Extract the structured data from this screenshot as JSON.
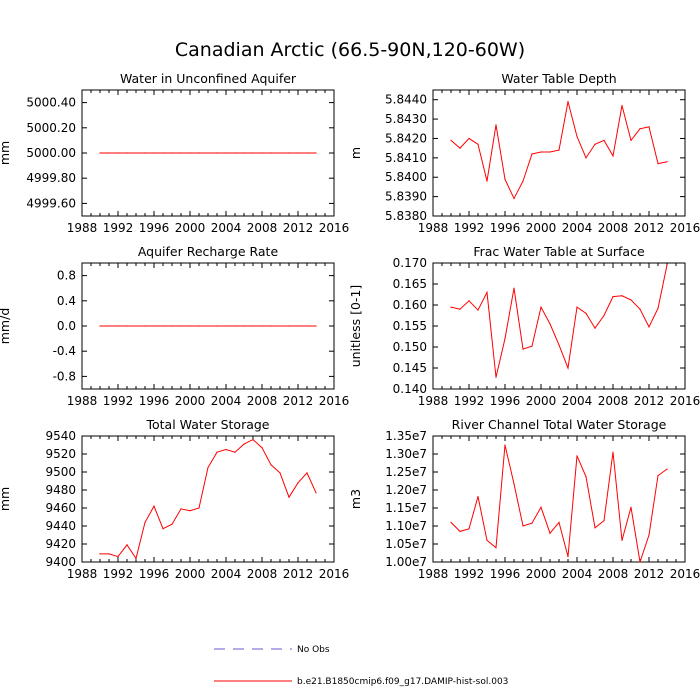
{
  "title": "Canadian Arctic (66.5-90N,120-60W)",
  "colors": {
    "model": "#ff0000",
    "obs": "#6a5acd",
    "axis": "#000000"
  },
  "legend": {
    "obs_label": "No Obs",
    "model_label": "b.e21.B1850cmip6.f09_g17.DAMIP-hist-sol.003"
  },
  "chart_data": [
    {
      "type": "line",
      "title": "Water in Unconfined Aquifer",
      "ylabel": "mm",
      "xlim": [
        1988,
        2016
      ],
      "ylim": [
        4999.5,
        5000.5
      ],
      "xticks": [
        1988,
        1992,
        1996,
        2000,
        2004,
        2008,
        2012,
        2016
      ],
      "xtick_labels": [
        "1988",
        "1992",
        "1996",
        "2000",
        "2004",
        "2008",
        "2012",
        "2016"
      ],
      "yticks": [
        4999.6,
        4999.8,
        5000.0,
        5000.2,
        5000.4
      ],
      "ytick_labels": [
        "4999.60",
        "4999.80",
        "5000.00",
        "5000.20",
        "5000.40"
      ],
      "x": [
        1990,
        1991,
        1992,
        1993,
        1994,
        1995,
        1996,
        1997,
        1998,
        1999,
        2000,
        2001,
        2002,
        2003,
        2004,
        2005,
        2006,
        2007,
        2008,
        2009,
        2010,
        2011,
        2012,
        2013,
        2014
      ],
      "y": [
        5000,
        5000,
        5000,
        5000,
        5000,
        5000,
        5000,
        5000,
        5000,
        5000,
        5000,
        5000,
        5000,
        5000,
        5000,
        5000,
        5000,
        5000,
        5000,
        5000,
        5000,
        5000,
        5000,
        5000,
        5000
      ]
    },
    {
      "type": "line",
      "title": "Water Table Depth",
      "ylabel": "m",
      "xlim": [
        1988,
        2016
      ],
      "ylim": [
        5.838,
        5.8445
      ],
      "xticks": [
        1988,
        1992,
        1996,
        2000,
        2004,
        2008,
        2012,
        2016
      ],
      "xtick_labels": [
        "1988",
        "1992",
        "1996",
        "2000",
        "2004",
        "2008",
        "2012",
        "2016"
      ],
      "yticks": [
        5.838,
        5.839,
        5.84,
        5.841,
        5.842,
        5.843,
        5.844
      ],
      "ytick_labels": [
        "5.8380",
        "5.8390",
        "5.8400",
        "5.8410",
        "5.8420",
        "5.8430",
        "5.8440"
      ],
      "x": [
        1990,
        1991,
        1992,
        1993,
        1994,
        1995,
        1996,
        1997,
        1998,
        1999,
        2000,
        2001,
        2002,
        2003,
        2004,
        2005,
        2006,
        2007,
        2008,
        2009,
        2010,
        2011,
        2012,
        2013,
        2014
      ],
      "y": [
        5.8419,
        5.8415,
        5.842,
        5.8417,
        5.8398,
        5.8427,
        5.8399,
        5.8389,
        5.8398,
        5.8412,
        5.8413,
        5.8413,
        5.8414,
        5.8439,
        5.8421,
        5.841,
        5.8417,
        5.8419,
        5.8411,
        5.8437,
        5.8419,
        5.8425,
        5.8426,
        5.8407,
        5.8408
      ]
    },
    {
      "type": "line",
      "title": "Aquifer Recharge Rate",
      "ylabel": "mm/d",
      "xlim": [
        1988,
        2016
      ],
      "ylim": [
        -1.0,
        1.0
      ],
      "xticks": [
        1988,
        1992,
        1996,
        2000,
        2004,
        2008,
        2012,
        2016
      ],
      "xtick_labels": [
        "1988",
        "1992",
        "1996",
        "2000",
        "2004",
        "2008",
        "2012",
        "2016"
      ],
      "yticks": [
        -0.8,
        -0.4,
        0.0,
        0.4,
        0.8
      ],
      "ytick_labels": [
        "-0.8",
        "-0.4",
        "0.0",
        "0.4",
        "0.8"
      ],
      "x": [
        1990,
        1991,
        1992,
        1993,
        1994,
        1995,
        1996,
        1997,
        1998,
        1999,
        2000,
        2001,
        2002,
        2003,
        2004,
        2005,
        2006,
        2007,
        2008,
        2009,
        2010,
        2011,
        2012,
        2013,
        2014
      ],
      "y": [
        0,
        0,
        0,
        0,
        0,
        0,
        0,
        0,
        0,
        0,
        0,
        0,
        0,
        0,
        0,
        0,
        0,
        0,
        0,
        0,
        0,
        0,
        0,
        0,
        0
      ]
    },
    {
      "type": "line",
      "title": "Frac Water Table at Surface",
      "ylabel": "unitless [0-1]",
      "xlim": [
        1988,
        2016
      ],
      "ylim": [
        0.14,
        0.17
      ],
      "xticks": [
        1988,
        1992,
        1996,
        2000,
        2004,
        2008,
        2012,
        2016
      ],
      "xtick_labels": [
        "1988",
        "1992",
        "1996",
        "2000",
        "2004",
        "2008",
        "2012",
        "2016"
      ],
      "yticks": [
        0.14,
        0.145,
        0.15,
        0.155,
        0.16,
        0.165,
        0.17
      ],
      "ytick_labels": [
        "0.140",
        "0.145",
        "0.150",
        "0.155",
        "0.160",
        "0.165",
        "0.170"
      ],
      "x": [
        1990,
        1991,
        1992,
        1993,
        1994,
        1995,
        1996,
        1997,
        1998,
        1999,
        2000,
        2001,
        2002,
        2003,
        2004,
        2005,
        2006,
        2007,
        2008,
        2009,
        2010,
        2011,
        2012,
        2013,
        2014
      ],
      "y": [
        0.1595,
        0.159,
        0.161,
        0.1588,
        0.163,
        0.1428,
        0.152,
        0.164,
        0.1495,
        0.1502,
        0.1595,
        0.1555,
        0.1505,
        0.145,
        0.1595,
        0.158,
        0.1545,
        0.1575,
        0.162,
        0.1622,
        0.1612,
        0.159,
        0.1548,
        0.1592,
        0.1695
      ]
    },
    {
      "type": "line",
      "title": "Total Water Storage",
      "ylabel": "mm",
      "xlim": [
        1988,
        2016
      ],
      "ylim": [
        9400,
        9540
      ],
      "xticks": [
        1988,
        1992,
        1996,
        2000,
        2004,
        2008,
        2012,
        2016
      ],
      "xtick_labels": [
        "1988",
        "1992",
        "1996",
        "2000",
        "2004",
        "2008",
        "2012",
        "2016"
      ],
      "yticks": [
        9400,
        9420,
        9440,
        9460,
        9480,
        9500,
        9520,
        9540
      ],
      "ytick_labels": [
        "9400",
        "9420",
        "9440",
        "9460",
        "9480",
        "9500",
        "9520",
        "9540"
      ],
      "x": [
        1990,
        1991,
        1992,
        1993,
        1994,
        1995,
        1996,
        1997,
        1998,
        1999,
        2000,
        2001,
        2002,
        2003,
        2004,
        2005,
        2006,
        2007,
        2008,
        2009,
        2010,
        2011,
        2012,
        2013,
        2014
      ],
      "y": [
        9409,
        9409,
        9406,
        9419,
        9404,
        9444,
        9462,
        9437,
        9442,
        9459,
        9457,
        9460,
        9505,
        9522,
        9525,
        9522,
        9531,
        9536,
        9527,
        9508,
        9499,
        9472,
        9488,
        9499,
        9477
      ]
    },
    {
      "type": "line",
      "title": "River Channel Total Water Storage",
      "ylabel": "m3",
      "xlim": [
        1988,
        2016
      ],
      "ylim": [
        10000000,
        13500000
      ],
      "xticks": [
        1988,
        1992,
        1996,
        2000,
        2004,
        2008,
        2012,
        2016
      ],
      "xtick_labels": [
        "1988",
        "1992",
        "1996",
        "2000",
        "2004",
        "2008",
        "2012",
        "2016"
      ],
      "yticks": [
        10000000,
        10500000,
        11000000,
        11500000,
        12000000,
        12500000,
        13000000,
        13500000
      ],
      "ytick_labels": [
        "1.00e7",
        "1.05e7",
        "1.10e7",
        "1.15e7",
        "1.20e7",
        "1.25e7",
        "1.30e7",
        "1.35e7"
      ],
      "x": [
        1990,
        1991,
        1992,
        1993,
        1994,
        1995,
        1996,
        1997,
        1998,
        1999,
        2000,
        2001,
        2002,
        2003,
        2004,
        2005,
        2006,
        2007,
        2008,
        2009,
        2010,
        2011,
        2012,
        2013,
        2014
      ],
      "y": [
        11100000,
        10850000,
        10920000,
        11820000,
        10600000,
        10400000,
        13250000,
        12170000,
        11000000,
        11080000,
        11520000,
        10800000,
        11100000,
        10150000,
        12950000,
        12370000,
        10950000,
        11150000,
        13050000,
        10600000,
        11520000,
        10000000,
        10750000,
        12400000,
        12580000
      ]
    }
  ]
}
